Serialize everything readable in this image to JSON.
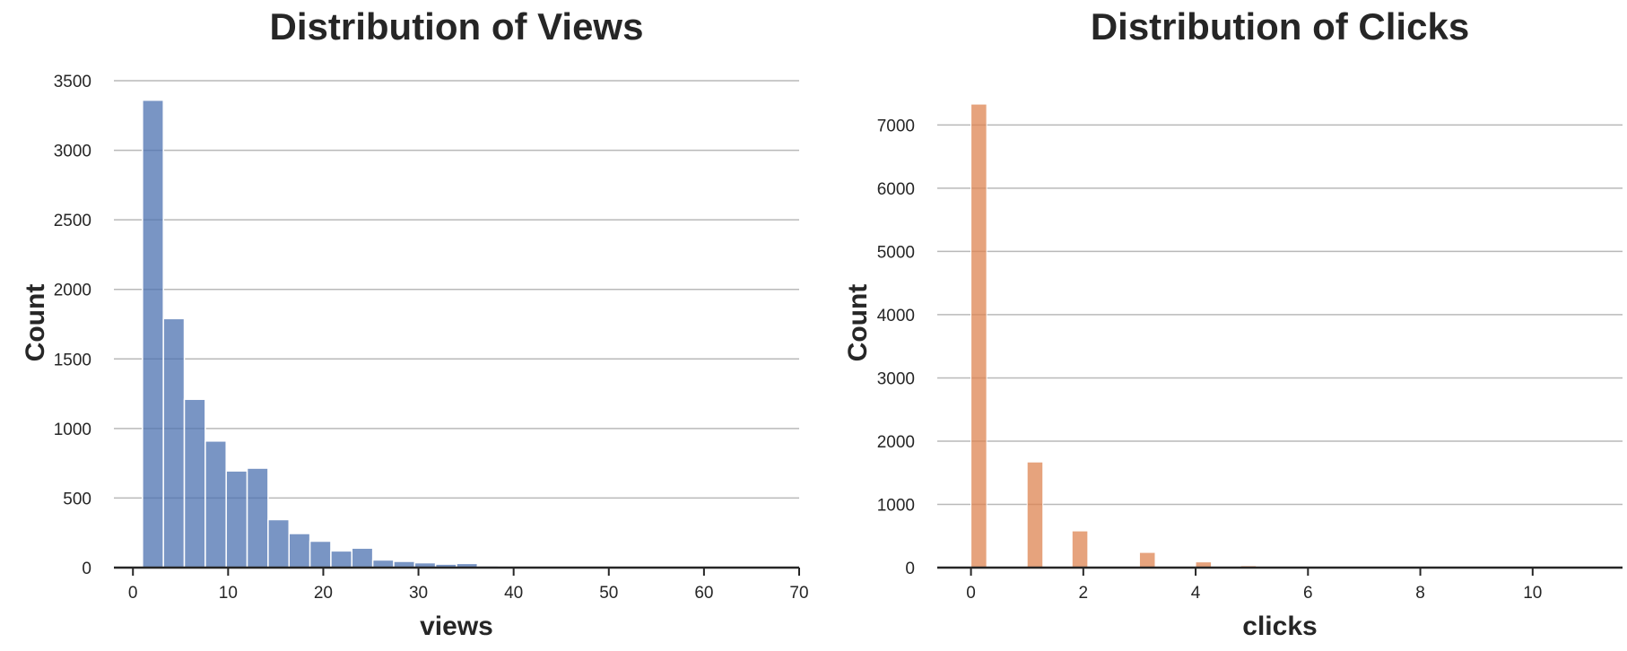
{
  "colors": {
    "views_bar": "#4c72b0",
    "clicks_bar": "#dd8452",
    "grid": "#b9b9b9",
    "text": "#262626"
  },
  "chart_data": [
    {
      "id": "views",
      "type": "bar",
      "title": "Distribution of Views",
      "xlabel": "views",
      "ylabel": "Count",
      "xlim": [
        -2,
        70
      ],
      "ylim": [
        0,
        3500
      ],
      "xticks": [
        0,
        10,
        20,
        30,
        40,
        50,
        60,
        70
      ],
      "yticks": [
        0,
        500,
        1000,
        1500,
        2000,
        2500,
        3000,
        3500
      ],
      "grid": "y",
      "bin_edges": [
        1,
        3.2,
        5.4,
        7.6,
        9.8,
        12,
        14.2,
        16.4,
        18.6,
        20.8,
        23,
        25.2,
        27.4,
        29.6,
        31.8,
        34,
        36.2,
        38.4
      ],
      "values": [
        3360,
        1790,
        1210,
        910,
        695,
        715,
        345,
        245,
        190,
        120,
        140,
        55,
        45,
        35,
        25,
        30,
        12
      ]
    },
    {
      "id": "clicks",
      "type": "bar",
      "title": "Distribution of Clicks",
      "xlabel": "clicks",
      "ylabel": "Count",
      "xlim": [
        -0.6,
        11.6
      ],
      "ylim": [
        0,
        7700
      ],
      "xticks": [
        0,
        2,
        4,
        6,
        8,
        10
      ],
      "yticks": [
        0,
        1000,
        2000,
        3000,
        4000,
        5000,
        6000,
        7000
      ],
      "grid": "y",
      "bar_width": 0.28,
      "x": [
        0.14,
        1.14,
        1.94,
        3.14,
        4.14,
        4.94
      ],
      "values": [
        7330,
        1670,
        580,
        240,
        90,
        30
      ]
    }
  ]
}
